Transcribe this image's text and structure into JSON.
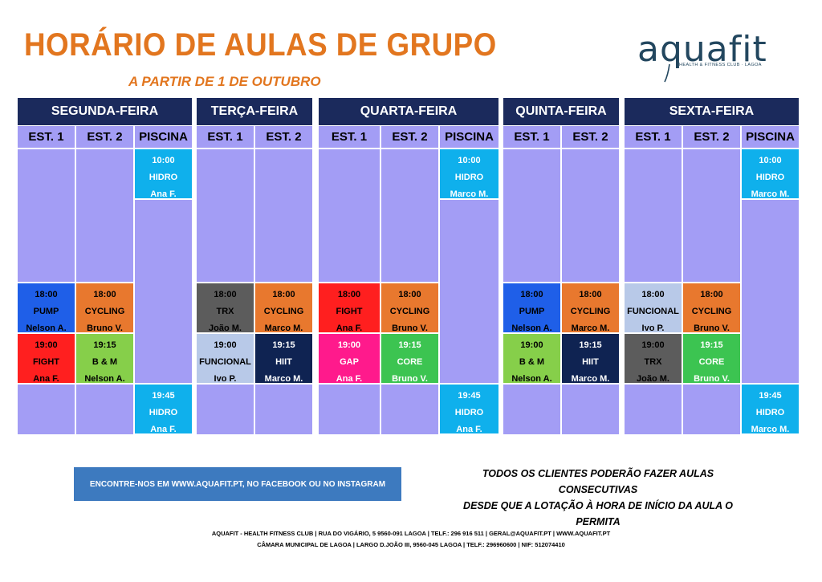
{
  "title": "HORÁRIO DE AULAS DE GRUPO",
  "subtitle": "A PARTIR DE 1 DE OUTUBRO",
  "logo": {
    "word": "aquafit",
    "tagline": "HEALTH & FITNESS CLUB · LAGOA"
  },
  "colors": {
    "header": "#1b2a5c",
    "empty": "#a39df5",
    "pump": "#1f5fe8",
    "cycling": "#e8782e",
    "fight": "#ff1f1f",
    "bm": "#86cf4a",
    "trx": "#5c5c5c",
    "funcional": "#b8c9e8",
    "hiit": "#0f2352",
    "gap": "#ff1a8c",
    "core": "#3cc451",
    "hidro": "#0fb0ec"
  },
  "days": [
    {
      "name": "SEGUNDA-FEIRA",
      "columns": [
        {
          "label": "EST. 1",
          "classes": [
            {
              "slot": "18:00",
              "time": "18:00",
              "name": "PUMP",
              "instructor": "Nelson A.",
              "color": "#1f5fe8",
              "text": "#000000"
            },
            {
              "slot": "19:00",
              "time": "19:00",
              "name": "FIGHT",
              "instructor": "Ana F.",
              "color": "#ff1f1f",
              "text": "#000000"
            }
          ]
        },
        {
          "label": "EST. 2",
          "classes": [
            {
              "slot": "18:00",
              "time": "18:00",
              "name": "CYCLING",
              "instructor": "Bruno V.",
              "color": "#e8782e",
              "text": "#000000"
            },
            {
              "slot": "19:00",
              "time": "19:15",
              "name": "B & M",
              "instructor": "Nelson A.",
              "color": "#86cf4a",
              "text": "#000000"
            }
          ]
        },
        {
          "label": "PISCINA",
          "classes": [
            {
              "slot": "10:00",
              "time": "10:00",
              "name": "HIDRO",
              "instructor": "Ana F.",
              "color": "#0fb0ec",
              "text": "#ffffff"
            },
            {
              "slot": "19:45",
              "time": "19:45",
              "name": "HIDRO",
              "instructor": "Ana F.",
              "color": "#0fb0ec",
              "text": "#ffffff"
            }
          ]
        }
      ]
    },
    {
      "name": "TERÇA-FEIRA",
      "columns": [
        {
          "label": "EST. 1",
          "classes": [
            {
              "slot": "18:00",
              "time": "18:00",
              "name": "TRX",
              "instructor": "João M.",
              "color": "#5c5c5c",
              "text": "#000000"
            },
            {
              "slot": "19:00",
              "time": "19:00",
              "name": "FUNCIONAL",
              "instructor": "Ivo P.",
              "color": "#b8c9e8",
              "text": "#000000"
            }
          ]
        },
        {
          "label": "EST. 2",
          "classes": [
            {
              "slot": "18:00",
              "time": "18:00",
              "name": "CYCLING",
              "instructor": "Marco M.",
              "color": "#e8782e",
              "text": "#000000"
            },
            {
              "slot": "19:00",
              "time": "19:15",
              "name": "HIIT",
              "instructor": "Marco M.",
              "color": "#0f2352",
              "text": "#ffffff"
            }
          ]
        }
      ]
    },
    {
      "name": "QUARTA-FEIRA",
      "columns": [
        {
          "label": "EST. 1",
          "classes": [
            {
              "slot": "18:00",
              "time": "18:00",
              "name": "FIGHT",
              "instructor": "Ana F.",
              "color": "#ff1f1f",
              "text": "#000000"
            },
            {
              "slot": "19:00",
              "time": "19:00",
              "name": "GAP",
              "instructor": "Ana F.",
              "color": "#ff1a8c",
              "text": "#ffffff"
            }
          ]
        },
        {
          "label": "EST. 2",
          "classes": [
            {
              "slot": "18:00",
              "time": "18:00",
              "name": "CYCLING",
              "instructor": "Bruno V.",
              "color": "#e8782e",
              "text": "#000000"
            },
            {
              "slot": "19:00",
              "time": "19:15",
              "name": "CORE",
              "instructor": "Bruno V.",
              "color": "#3cc451",
              "text": "#ffffff"
            }
          ]
        },
        {
          "label": "PISCINA",
          "classes": [
            {
              "slot": "10:00",
              "time": "10:00",
              "name": "HIDRO",
              "instructor": "Marco M.",
              "color": "#0fb0ec",
              "text": "#ffffff"
            },
            {
              "slot": "19:45",
              "time": "19:45",
              "name": "HIDRO",
              "instructor": "Ana F.",
              "color": "#0fb0ec",
              "text": "#ffffff"
            }
          ]
        }
      ]
    },
    {
      "name": "QUINTA-FEIRA",
      "columns": [
        {
          "label": "EST. 1",
          "classes": [
            {
              "slot": "18:00",
              "time": "18:00",
              "name": "PUMP",
              "instructor": "Nelson A.",
              "color": "#1f5fe8",
              "text": "#000000"
            },
            {
              "slot": "19:00",
              "time": "19:00",
              "name": "B & M",
              "instructor": "Nelson A.",
              "color": "#86cf4a",
              "text": "#000000"
            }
          ]
        },
        {
          "label": "EST. 2",
          "classes": [
            {
              "slot": "18:00",
              "time": "18:00",
              "name": "CYCLING",
              "instructor": "Marco M.",
              "color": "#e8782e",
              "text": "#000000"
            },
            {
              "slot": "19:00",
              "time": "19:15",
              "name": "HIIT",
              "instructor": "Marco M.",
              "color": "#0f2352",
              "text": "#ffffff"
            }
          ]
        }
      ]
    },
    {
      "name": "SEXTA-FEIRA",
      "columns": [
        {
          "label": "EST. 1",
          "classes": [
            {
              "slot": "18:00",
              "time": "18:00",
              "name": "FUNCIONAL",
              "instructor": "Ivo P.",
              "color": "#b8c9e8",
              "text": "#000000"
            },
            {
              "slot": "19:00",
              "time": "19:00",
              "name": "TRX",
              "instructor": "João M.",
              "color": "#5c5c5c",
              "text": "#000000"
            }
          ]
        },
        {
          "label": "EST. 2",
          "classes": [
            {
              "slot": "18:00",
              "time": "18:00",
              "name": "CYCLING",
              "instructor": "Bruno V.",
              "color": "#e8782e",
              "text": "#000000"
            },
            {
              "slot": "19:00",
              "time": "19:15",
              "name": "CORE",
              "instructor": "Bruno V.",
              "color": "#3cc451",
              "text": "#ffffff"
            }
          ]
        },
        {
          "label": "PISCINA",
          "classes": [
            {
              "slot": "10:00",
              "time": "10:00",
              "name": "HIDRO",
              "instructor": "Marco M.",
              "color": "#0fb0ec",
              "text": "#ffffff"
            },
            {
              "slot": "19:45",
              "time": "19:45",
              "name": "HIDRO",
              "instructor": "Marco M.",
              "color": "#0fb0ec",
              "text": "#ffffff"
            }
          ]
        }
      ]
    }
  ],
  "banner": "ENCONTRE-NOS EM WWW.AQUAFIT.PT, NO FACEBOOK OU NO INSTAGRAM",
  "note": {
    "line1": "TODOS OS CLIENTES PODERÃO FAZER AULAS CONSECUTIVAS",
    "line2": "DESDE QUE A LOTAÇÃO À HORA DE INÍCIO DA AULA O PERMITA"
  },
  "footer": {
    "line1": "AQUAFIT - HEALTH FITNESS CLUB | RUA DO VIGÁRIO, 5 9560-091 LAGOA | TELF.: 296 916 511 | GERAL@AQUAFIT.PT | WWW.AQUAFIT.PT",
    "line2": "CÂMARA MUNICIPAL DE LAGOA | LARGO D.JOÃO III, 9560-045 LAGOA | TELF.: 296960600 | NIF: 512074410"
  }
}
